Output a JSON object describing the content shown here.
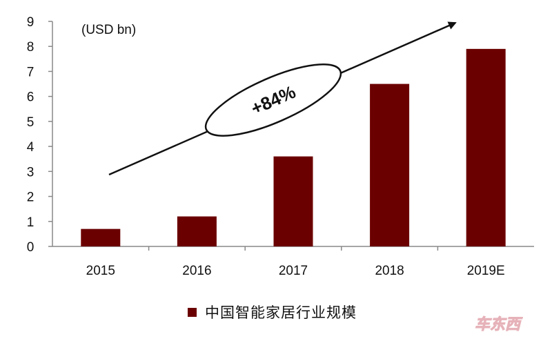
{
  "chart_data": {
    "type": "bar",
    "unit_label": "(USD bn)",
    "categories": [
      "2015",
      "2016",
      "2017",
      "2018",
      "2019E"
    ],
    "series": [
      {
        "name": "中国智能家居行业规模",
        "values": [
          0.7,
          1.2,
          3.6,
          6.5,
          7.9
        ],
        "color": "#6b0000"
      }
    ],
    "ylim": [
      0,
      9
    ],
    "yticks": [
      "0",
      "1",
      "2",
      "3",
      "4",
      "5",
      "6",
      "7",
      "8",
      "9"
    ],
    "annotation": "+84%",
    "grid": false,
    "legend_position": "bottom"
  },
  "watermark": "车东西"
}
